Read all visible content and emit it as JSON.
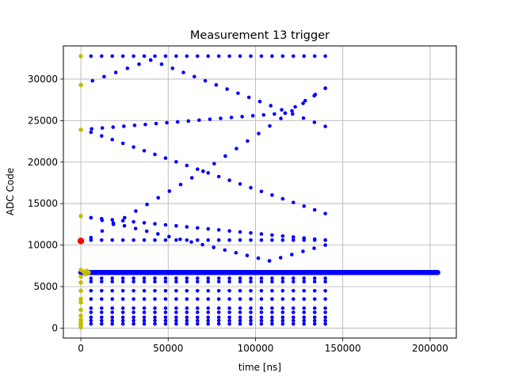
{
  "chart_data": {
    "type": "scatter",
    "title": "Measurement 13 trigger",
    "xlabel": "time [ns]",
    "ylabel": "ADC Code",
    "xlim": [
      -10000,
      215000
    ],
    "ylim": [
      -1200,
      34000
    ],
    "xticks": [
      0,
      50000,
      100000,
      150000,
      200000
    ],
    "yticks": [
      0,
      5000,
      10000,
      15000,
      20000,
      25000,
      30000
    ],
    "grid": true,
    "colors": {
      "main": "#0000ff",
      "trigger": "#bfbf00",
      "marker": "#ff0000",
      "grid": "#b0b0b0"
    },
    "series": [
      {
        "role": "dense baseline",
        "color": "#0000ff",
        "x_range": [
          0,
          204500
        ],
        "x_step": 700,
        "y": 6700
      },
      {
        "role": "top constant",
        "color": "#0000ff",
        "x_start": 5800,
        "x_end": 140000,
        "x_step": 6200,
        "y": [
          32767,
          32767
        ]
      },
      {
        "role": "rising sweep A",
        "color": "#0000ff",
        "x_start": 0,
        "x_end": 40000,
        "x_step": 6200,
        "y": [
          29300,
          32300
        ]
      },
      {
        "role": "falling sweep A",
        "color": "#0000ff",
        "x_start": 40000,
        "x_end": 140000,
        "x_step": 6200,
        "y": [
          32300,
          24300
        ]
      },
      {
        "role": "falling sweep B",
        "color": "#0000ff",
        "x_start": 0,
        "x_end": 117000,
        "x_step": 6200,
        "y": [
          23900,
          25900
        ]
      },
      {
        "role": "rising sweep B",
        "color": "#0000ff",
        "x_start": 117000,
        "x_end": 140000,
        "x_step": 6200,
        "y": [
          25900,
          28900
        ]
      },
      {
        "role": "falling line C",
        "color": "#0000ff",
        "x_start": 5800,
        "x_end": 140000,
        "x_step": 6200,
        "y": [
          23600,
          13800
        ]
      },
      {
        "role": "rising line D",
        "color": "#0000ff",
        "x_start": 5800,
        "x_end": 140000,
        "x_step": 6200,
        "y": [
          10600,
          10600
        ]
      },
      {
        "role": "falling line E",
        "color": "#0000ff",
        "x_start": 5800,
        "x_end": 140000,
        "x_step": 6200,
        "y": [
          13300,
          10600
        ]
      }
    ],
    "diagonal_series": [
      {
        "color": "#0000ff",
        "x_start": 5800,
        "x_end": 70000,
        "x_step": 6200,
        "y": [
          10900,
          18900
        ]
      },
      {
        "color": "#0000ff",
        "x_start": 70000,
        "x_end": 140000,
        "x_step": 6200,
        "y": [
          18900,
          28900
        ]
      },
      {
        "color": "#0000ff",
        "x_start": 5800,
        "x_end": 108000,
        "x_step": 6200,
        "y": [
          13300,
          8100
        ]
      },
      {
        "color": "#0000ff",
        "x_start": 108000,
        "x_end": 140000,
        "x_step": 6200,
        "y": [
          8100,
          10000
        ]
      }
    ],
    "lower_bands": {
      "color": "#0000ff",
      "x_start": 5800,
      "x_end": 140000,
      "x_step": 6200,
      "y_values": [
        6000,
        5600,
        4500,
        3500,
        2400,
        1900,
        1300,
        900,
        500
      ]
    },
    "trigger_points": {
      "color": "#bfbf00",
      "x": [
        0,
        0,
        0,
        0,
        0,
        0,
        0,
        0,
        0,
        0,
        0,
        0,
        0,
        0,
        0,
        0,
        0,
        1500,
        2500,
        3500,
        4500
      ],
      "y": [
        32767,
        29300,
        23900,
        13500,
        7000,
        6200,
        5500,
        4500,
        3500,
        3100,
        2200,
        1500,
        1000,
        700,
        500,
        300,
        100,
        6800,
        6500,
        6900,
        6700
      ]
    },
    "red_marker": {
      "x": 0,
      "y": 10500,
      "color": "#ff0000"
    }
  }
}
